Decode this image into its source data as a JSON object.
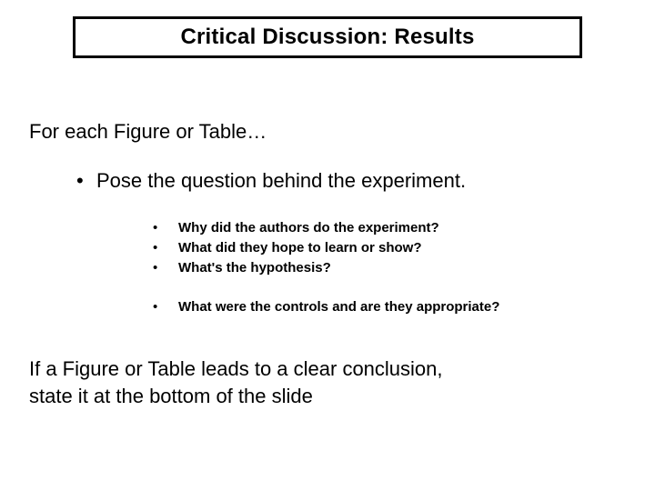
{
  "title": "Critical Discussion: Results",
  "heading": "For each Figure or Table…",
  "level1": {
    "text": "Pose the question behind the experiment."
  },
  "group1": {
    "a": "Why did the authors do the experiment?",
    "b": "What did they hope to learn or show?",
    "c": "What's the hypothesis?"
  },
  "group2": {
    "a": "What were the controls and are they appropriate?"
  },
  "footer": {
    "line1": "If a Figure or Table leads to a clear conclusion,",
    "line2": "state it at the bottom of the slide"
  },
  "style": {
    "background_color": "#ffffff",
    "text_color": "#000000",
    "border_color": "#000000",
    "title_fontsize": 24,
    "h1_fontsize": 22,
    "l1_fontsize": 22,
    "l2_fontsize": 15,
    "footer_fontsize": 22,
    "font_family": "Arial",
    "slide_width": 720,
    "slide_height": 540
  }
}
